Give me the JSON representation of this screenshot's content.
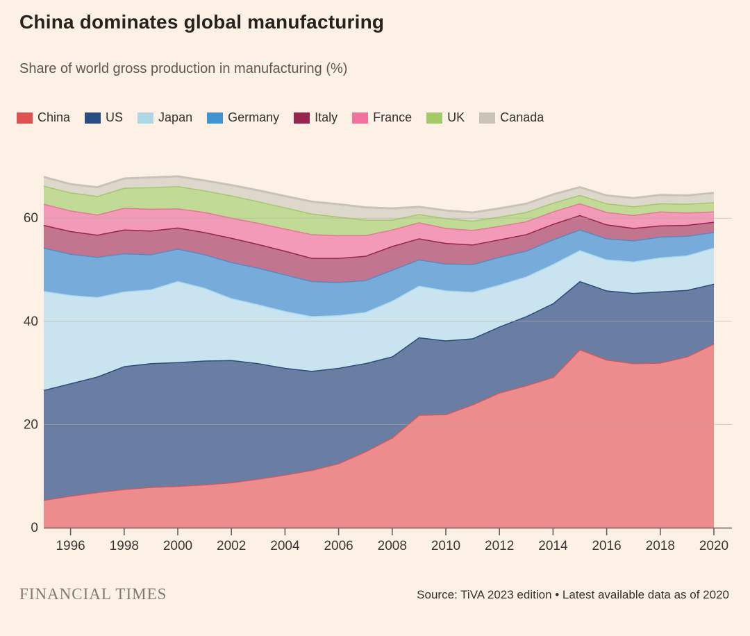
{
  "header": {
    "title": "China dominates global manufacturing",
    "subtitle": "Share of world gross production in manufacturing (%)"
  },
  "footer": {
    "brand": "FINANCIAL TIMES",
    "source": "Source: TiVA 2023 edition • Latest available data as of 2020"
  },
  "colors": {
    "background": "#fdf1e5",
    "grid": "#b3aaa0",
    "axis": "#66605c",
    "tick_text": "#3a3632"
  },
  "chart_data": {
    "type": "area",
    "stacked": true,
    "title": "China dominates global manufacturing",
    "subtitle": "Share of world gross production in manufacturing (%)",
    "xlabel": "",
    "ylabel": "Share of world gross production in manufacturing (%)",
    "x": [
      1995,
      1996,
      1997,
      1998,
      1999,
      2000,
      2001,
      2002,
      2003,
      2004,
      2005,
      2006,
      2007,
      2008,
      2009,
      2010,
      2011,
      2012,
      2013,
      2014,
      2015,
      2016,
      2017,
      2018,
      2019,
      2020
    ],
    "x_tick_labels": [
      "1996",
      "1998",
      "2000",
      "2002",
      "2004",
      "2006",
      "2008",
      "2010",
      "2012",
      "2014",
      "2016",
      "2018",
      "2020"
    ],
    "x_ticks": [
      1996,
      1998,
      2000,
      2002,
      2004,
      2006,
      2008,
      2010,
      2012,
      2014,
      2016,
      2018,
      2020
    ],
    "y_ticks": [
      0,
      20,
      40,
      60
    ],
    "ylim": [
      0,
      70
    ],
    "xlim": [
      1995,
      2020
    ],
    "grid": true,
    "legend_position": "top",
    "series": [
      {
        "name": "China",
        "color": "#e05252",
        "fill": "#ec8c8c",
        "values": [
          5.4,
          6.2,
          6.9,
          7.5,
          7.9,
          8.1,
          8.4,
          8.8,
          9.5,
          10.3,
          11.2,
          12.5,
          14.8,
          17.5,
          21.9,
          22.0,
          23.9,
          26.2,
          27.6,
          29.2,
          34.6,
          32.6,
          31.9,
          32.0,
          33.2,
          35.7
        ]
      },
      {
        "name": "US",
        "color": "#274e80",
        "fill": "#6a7ea3",
        "values": [
          21.3,
          21.8,
          22.4,
          23.8,
          24.0,
          24.0,
          24.0,
          23.7,
          22.4,
          20.7,
          19.2,
          18.5,
          17.1,
          15.7,
          15.0,
          14.3,
          12.8,
          12.8,
          13.4,
          14.3,
          13.2,
          13.4,
          13.6,
          13.8,
          12.9,
          11.6
        ]
      },
      {
        "name": "Japan",
        "color": "#aed7e6",
        "fill": "#c9e4ee",
        "values": [
          19.2,
          17.1,
          15.4,
          14.5,
          14.3,
          15.7,
          14.1,
          12.0,
          11.4,
          11.0,
          10.6,
          10.2,
          9.9,
          10.8,
          10.0,
          9.7,
          9.0,
          8.1,
          7.7,
          7.6,
          6.0,
          6.0,
          6.1,
          6.6,
          6.7,
          7.0
        ]
      },
      {
        "name": "Germany",
        "color": "#4193cf",
        "fill": "#77abd9",
        "values": [
          8.4,
          8.0,
          7.8,
          7.4,
          6.8,
          6.3,
          6.5,
          7.0,
          7.1,
          7.1,
          6.8,
          6.4,
          6.2,
          6.0,
          5.1,
          5.2,
          5.4,
          5.4,
          5.0,
          4.8,
          4.0,
          4.1,
          4.1,
          4.0,
          3.8,
          3.0
        ]
      },
      {
        "name": "Italy",
        "color": "#97244c",
        "fill": "#c2758e",
        "values": [
          4.4,
          4.4,
          4.3,
          4.6,
          4.6,
          4.1,
          4.3,
          4.7,
          4.6,
          4.6,
          4.5,
          4.7,
          4.7,
          4.6,
          4.1,
          4.0,
          3.8,
          3.4,
          3.2,
          3.0,
          2.8,
          2.7,
          2.4,
          2.2,
          2.1,
          2.0
        ]
      },
      {
        "name": "France",
        "color": "#f0709e",
        "fill": "#f49ab9",
        "values": [
          4.1,
          4.0,
          3.9,
          4.2,
          4.2,
          3.7,
          3.9,
          3.9,
          4.1,
          4.3,
          4.6,
          4.4,
          4.0,
          3.2,
          3.1,
          2.9,
          2.8,
          2.6,
          2.5,
          2.4,
          2.3,
          2.4,
          2.5,
          2.7,
          2.4,
          2.0
        ]
      },
      {
        "name": "UK",
        "color": "#a2ca67",
        "fill": "#c1da95",
        "values": [
          3.5,
          3.5,
          3.6,
          3.9,
          4.2,
          4.3,
          4.2,
          4.3,
          4.2,
          4.1,
          4.0,
          3.6,
          3.0,
          1.9,
          1.6,
          1.9,
          1.8,
          1.8,
          1.8,
          1.7,
          1.6,
          1.7,
          1.7,
          1.6,
          1.7,
          1.8
        ]
      },
      {
        "name": "Canada",
        "color": "#c9c3b7",
        "fill": "#ded7cb",
        "values": [
          1.7,
          1.6,
          1.7,
          1.8,
          1.9,
          1.9,
          1.9,
          2.0,
          2.1,
          2.2,
          2.3,
          2.4,
          2.4,
          2.2,
          1.4,
          1.5,
          1.6,
          1.6,
          1.6,
          1.6,
          1.5,
          1.5,
          1.6,
          1.6,
          1.6,
          1.8
        ]
      }
    ]
  }
}
